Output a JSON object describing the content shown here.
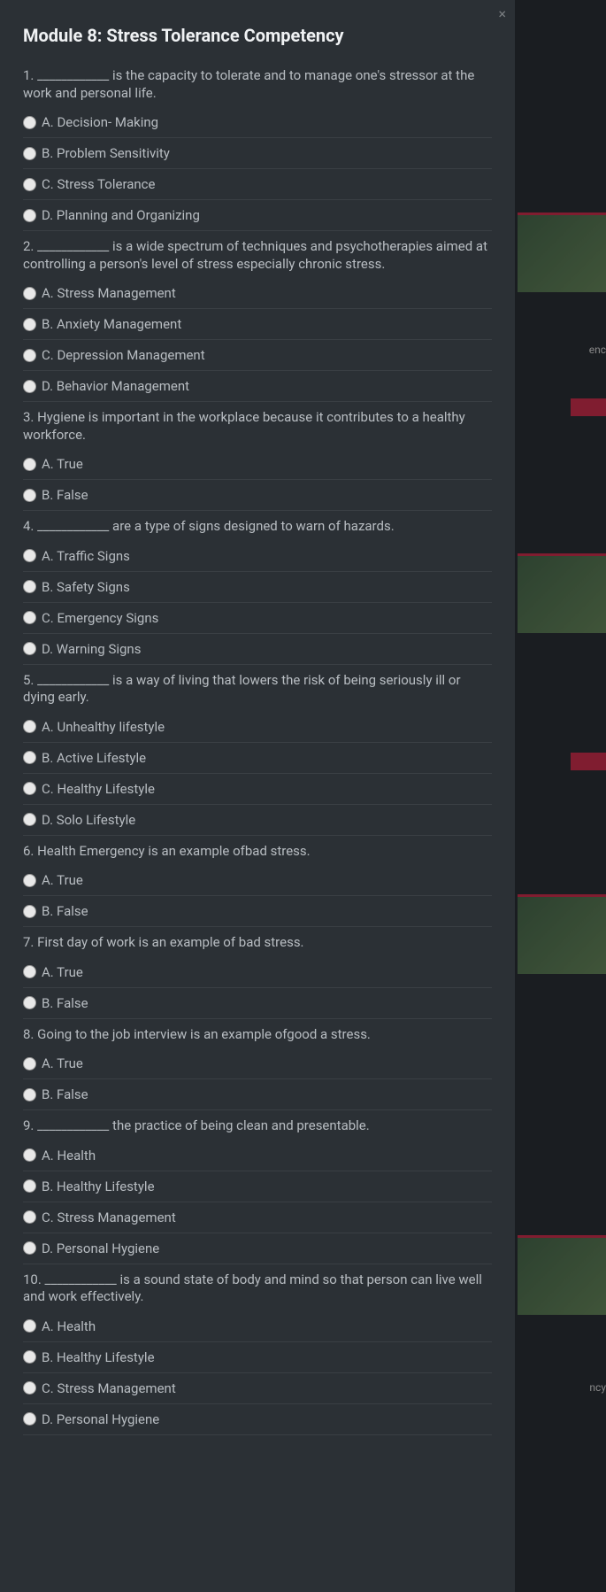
{
  "title": "Module 8: Stress Tolerance Competency",
  "bg": {
    "text1": "enc",
    "text2": "ncy"
  },
  "questions": [
    {
      "prompt": "1. ____________ is the capacity to tolerate and to manage one's stressor at the work and personal life.",
      "opts": [
        "A. Decision- Making",
        "B. Problem Sensitivity",
        "C. Stress Tolerance",
        "D. Planning and Organizing"
      ]
    },
    {
      "prompt": "2. ____________ is a wide spectrum of techniques and psychotherapies aimed at controlling a person's level of stress especially chronic stress.",
      "opts": [
        "A. Stress Management",
        "B. Anxiety Management",
        "C. Depression Management",
        "D. Behavior Management"
      ]
    },
    {
      "prompt": "3. Hygiene is important in the workplace because it contributes to a healthy workforce.",
      "opts": [
        "A. True",
        "B. False"
      ]
    },
    {
      "prompt": "4. ____________ are a type of signs designed to warn of hazards.",
      "opts": [
        "A. Traffic Signs",
        "B. Safety Signs",
        "C. Emergency Signs",
        "D. Warning Signs"
      ]
    },
    {
      "prompt": "5. ____________ is a way of living that lowers the risk of being seriously ill or dying early.",
      "opts": [
        "A. Unhealthy lifestyle",
        "B. Active Lifestyle",
        "C. Healthy Lifestyle",
        "D. Solo Lifestyle"
      ]
    },
    {
      "prompt": "6. Health Emergency is an example ofbad stress.",
      "opts": [
        "A. True",
        "B. False"
      ]
    },
    {
      "prompt": "7. First day of work is an example of bad stress.",
      "opts": [
        "A. True",
        "B. False"
      ]
    },
    {
      "prompt": "8. Going to the job interview is an example ofgood a stress.",
      "opts": [
        "A. True",
        "B. False"
      ]
    },
    {
      "prompt": "9. ____________ the practice of being clean and presentable.",
      "opts": [
        "A. Health",
        "B. Healthy Lifestyle",
        "C. Stress Management",
        "D. Personal Hygiene"
      ]
    },
    {
      "prompt": "10. ____________ is a sound state of body and mind so that person can live well and work effectively.",
      "opts": [
        "A. Health",
        "B. Healthy Lifestyle",
        "C. Stress Management",
        "D. Personal Hygiene"
      ]
    }
  ]
}
